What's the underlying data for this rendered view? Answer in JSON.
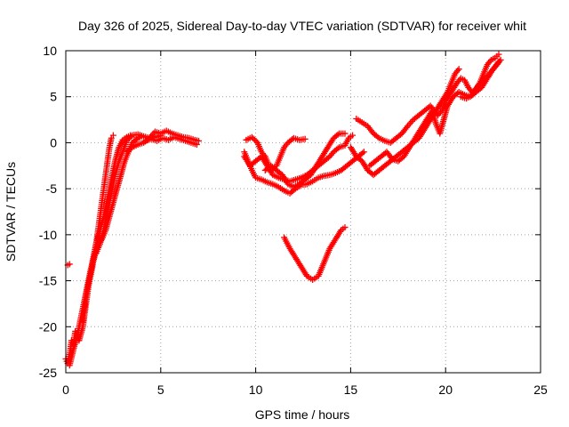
{
  "chart_data": {
    "type": "scatter",
    "title": "Day 326 of 2025, Sidereal Day-to-day VTEC variation (SDTVAR) for receiver whit",
    "xlabel": "GPS time / hours",
    "ylabel": "SDTVAR / TECUs",
    "xlim": [
      0,
      25
    ],
    "ylim": [
      -25,
      10
    ],
    "xticks": [
      0,
      5,
      10,
      15,
      20,
      25
    ],
    "yticks": [
      -25,
      -20,
      -15,
      -10,
      -5,
      0,
      5,
      10
    ],
    "grid": true,
    "marker": "+",
    "series": [
      {
        "name": "SDTVAR",
        "color": "#ff0000",
        "segments": [
          [
            [
              0.1,
              -13.3
            ],
            [
              0.2,
              -13.2
            ]
          ],
          [
            [
              0.0,
              -23.5
            ],
            [
              0.1,
              -24.0
            ],
            [
              0.2,
              -23.0
            ],
            [
              0.3,
              -21.5
            ],
            [
              0.4,
              -22.0
            ],
            [
              0.5,
              -20.5
            ],
            [
              0.7,
              -21.5
            ],
            [
              0.9,
              -20.0
            ],
            [
              1.0,
              -18.5
            ],
            [
              1.1,
              -17.0
            ],
            [
              1.2,
              -15.5
            ],
            [
              1.3,
              -14.5
            ],
            [
              1.4,
              -13.5
            ],
            [
              1.5,
              -12.0
            ],
            [
              1.6,
              -11.0
            ],
            [
              1.7,
              -9.5
            ],
            [
              1.8,
              -8.0
            ],
            [
              1.9,
              -6.5
            ],
            [
              2.0,
              -5.0
            ],
            [
              2.1,
              -3.5
            ],
            [
              2.2,
              -2.0
            ],
            [
              2.3,
              -0.5
            ],
            [
              2.4,
              0.5
            ],
            [
              2.5,
              0.8
            ]
          ],
          [
            [
              0.2,
              -24.2
            ],
            [
              0.4,
              -22.5
            ],
            [
              0.6,
              -21.0
            ],
            [
              0.8,
              -19.0
            ],
            [
              1.0,
              -17.0
            ],
            [
              1.2,
              -15.0
            ],
            [
              1.4,
              -13.0
            ],
            [
              1.6,
              -11.0
            ],
            [
              1.8,
              -9.5
            ],
            [
              2.0,
              -8.0
            ],
            [
              2.2,
              -6.0
            ],
            [
              2.4,
              -4.0
            ],
            [
              2.6,
              -2.0
            ],
            [
              2.8,
              -0.5
            ],
            [
              3.0,
              0.3
            ],
            [
              3.2,
              0.6
            ],
            [
              3.4,
              0.8
            ]
          ],
          [
            [
              0.9,
              -19.5
            ],
            [
              1.1,
              -16.0
            ],
            [
              1.3,
              -14.0
            ],
            [
              1.5,
              -12.5
            ],
            [
              1.7,
              -11.0
            ],
            [
              1.9,
              -10.5
            ],
            [
              2.1,
              -9.5
            ],
            [
              2.3,
              -8.0
            ],
            [
              2.5,
              -6.5
            ],
            [
              2.7,
              -5.0
            ],
            [
              2.9,
              -3.5
            ],
            [
              3.1,
              -2.0
            ],
            [
              3.3,
              -1.0
            ],
            [
              3.5,
              0.0
            ],
            [
              3.8,
              0.5
            ],
            [
              4.0,
              0.7
            ]
          ],
          [
            [
              1.6,
              -12.0
            ],
            [
              1.8,
              -11.0
            ],
            [
              2.0,
              -9.5
            ],
            [
              2.2,
              -7.5
            ],
            [
              2.4,
              -5.5
            ],
            [
              2.6,
              -3.5
            ],
            [
              2.8,
              -2.0
            ],
            [
              3.0,
              -1.0
            ],
            [
              3.2,
              0.2
            ],
            [
              3.5,
              0.8
            ],
            [
              3.8,
              0.9
            ],
            [
              4.1,
              0.7
            ],
            [
              4.4,
              0.5
            ],
            [
              4.7,
              0.6
            ],
            [
              5.0,
              0.8
            ]
          ],
          [
            [
              3.2,
              -1.0
            ],
            [
              3.5,
              -0.5
            ],
            [
              3.8,
              -0.2
            ],
            [
              4.1,
              0.0
            ],
            [
              4.4,
              0.5
            ],
            [
              4.7,
              1.2
            ],
            [
              5.0,
              1.0
            ],
            [
              5.3,
              1.3
            ],
            [
              5.6,
              1.0
            ],
            [
              5.9,
              0.8
            ],
            [
              6.2,
              0.6
            ],
            [
              6.5,
              0.5
            ],
            [
              6.8,
              0.3
            ],
            [
              7.0,
              0.2
            ]
          ],
          [
            [
              4.2,
              0.2
            ],
            [
              4.5,
              0.4
            ],
            [
              4.8,
              0.2
            ],
            [
              5.1,
              0.5
            ],
            [
              5.4,
              0.3
            ],
            [
              5.7,
              0.6
            ],
            [
              6.0,
              0.4
            ],
            [
              6.3,
              0.2
            ],
            [
              6.6,
              0.0
            ],
            [
              6.9,
              -0.2
            ]
          ],
          [
            [
              9.4,
              -1.0
            ],
            [
              9.6,
              -2.0
            ],
            [
              9.8,
              -3.0
            ],
            [
              10.0,
              -3.8
            ],
            [
              10.3,
              -4.0
            ],
            [
              10.6,
              -4.3
            ],
            [
              10.9,
              -4.5
            ],
            [
              11.2,
              -4.8
            ],
            [
              11.5,
              -5.2
            ],
            [
              11.8,
              -5.5
            ],
            [
              12.1,
              -5.0
            ],
            [
              12.4,
              -4.6
            ],
            [
              12.7,
              -4.5
            ],
            [
              13.0,
              -4.2
            ],
            [
              13.3,
              -3.8
            ],
            [
              13.6,
              -3.6
            ],
            [
              13.9,
              -3.5
            ],
            [
              14.2,
              -3.3
            ],
            [
              14.5,
              -3.0
            ],
            [
              14.8,
              -2.5
            ],
            [
              15.1,
              -2.0
            ],
            [
              15.4,
              -1.5
            ],
            [
              15.7,
              -1.0
            ]
          ],
          [
            [
              9.5,
              0.3
            ],
            [
              9.8,
              0.6
            ],
            [
              10.1,
              0.0
            ],
            [
              10.3,
              -1.0
            ],
            [
              10.5,
              -1.5
            ],
            [
              10.7,
              -2.5
            ],
            [
              10.9,
              -2.8
            ],
            [
              11.1,
              -2.5
            ],
            [
              11.3,
              -1.5
            ],
            [
              11.5,
              -0.5
            ],
            [
              11.7,
              0.0
            ],
            [
              12.0,
              0.5
            ],
            [
              12.3,
              0.3
            ],
            [
              12.6,
              0.4
            ]
          ],
          [
            [
              9.4,
              -1.5
            ],
            [
              9.7,
              -2.5
            ],
            [
              10.0,
              -2.0
            ],
            [
              10.3,
              -1.5
            ],
            [
              10.6,
              -2.5
            ],
            [
              10.9,
              -3.5
            ],
            [
              11.2,
              -3.8
            ],
            [
              11.5,
              -4.0
            ],
            [
              11.8,
              -4.2
            ],
            [
              12.1,
              -4.0
            ],
            [
              12.4,
              -3.8
            ],
            [
              12.7,
              -3.5
            ],
            [
              13.0,
              -3.0
            ],
            [
              13.3,
              -2.5
            ],
            [
              13.6,
              -2.0
            ],
            [
              13.9,
              -1.5
            ],
            [
              14.1,
              -1.0
            ],
            [
              14.4,
              -0.5
            ],
            [
              14.7,
              -0.3
            ],
            [
              14.9,
              0.5
            ],
            [
              15.1,
              0.8
            ]
          ],
          [
            [
              10.5,
              -3.0
            ],
            [
              10.8,
              -2.5
            ],
            [
              11.1,
              -3.0
            ],
            [
              11.4,
              -3.5
            ],
            [
              11.7,
              -4.5
            ],
            [
              12.0,
              -4.8
            ],
            [
              12.3,
              -4.5
            ],
            [
              12.6,
              -4.0
            ],
            [
              12.9,
              -3.5
            ],
            [
              13.2,
              -2.5
            ],
            [
              13.5,
              -1.5
            ],
            [
              13.8,
              -0.5
            ],
            [
              14.1,
              0.5
            ],
            [
              14.4,
              1.0
            ],
            [
              14.7,
              1.0
            ]
          ],
          [
            [
              11.5,
              -10.3
            ],
            [
              11.8,
              -11.5
            ],
            [
              12.1,
              -12.5
            ],
            [
              12.4,
              -13.5
            ],
            [
              12.7,
              -14.5
            ],
            [
              13.0,
              -14.9
            ],
            [
              13.3,
              -14.5
            ],
            [
              13.6,
              -13.0
            ],
            [
              13.9,
              -11.5
            ],
            [
              14.2,
              -10.5
            ],
            [
              14.5,
              -9.5
            ],
            [
              14.7,
              -9.2
            ]
          ],
          [
            [
              15.0,
              -0.5
            ],
            [
              15.3,
              -1.5
            ],
            [
              15.6,
              -2.0
            ],
            [
              15.9,
              -3.0
            ],
            [
              16.2,
              -3.5
            ],
            [
              16.5,
              -3.0
            ],
            [
              16.8,
              -2.5
            ],
            [
              17.1,
              -2.0
            ],
            [
              17.4,
              -1.5
            ],
            [
              17.7,
              -1.0
            ],
            [
              18.0,
              -0.5
            ],
            [
              18.3,
              0.0
            ],
            [
              18.6,
              0.5
            ],
            [
              18.9,
              1.5
            ],
            [
              19.2,
              2.5
            ],
            [
              19.5,
              3.5
            ],
            [
              19.8,
              4.5
            ],
            [
              20.1,
              5.5
            ],
            [
              20.3,
              6.5
            ],
            [
              20.5,
              7.5
            ],
            [
              20.7,
              8.0
            ]
          ],
          [
            [
              15.3,
              2.6
            ],
            [
              15.6,
              2.2
            ],
            [
              15.9,
              1.8
            ],
            [
              16.2,
              1.0
            ],
            [
              16.5,
              0.5
            ],
            [
              16.8,
              0.2
            ],
            [
              17.1,
              0.0
            ],
            [
              17.4,
              0.5
            ],
            [
              17.7,
              1.0
            ],
            [
              18.0,
              1.8
            ],
            [
              18.3,
              2.5
            ],
            [
              18.6,
              3.0
            ],
            [
              18.9,
              3.5
            ],
            [
              19.2,
              4.0
            ],
            [
              19.4,
              3.5
            ],
            [
              19.6,
              3.0
            ],
            [
              19.8,
              3.5
            ],
            [
              20.0,
              4.5
            ],
            [
              20.3,
              5.5
            ],
            [
              20.6,
              6.5
            ],
            [
              20.8,
              7.0
            ],
            [
              21.0,
              6.8
            ],
            [
              21.2,
              6.0
            ],
            [
              21.4,
              5.5
            ],
            [
              21.6,
              5.8
            ],
            [
              21.8,
              6.5
            ],
            [
              22.0,
              7.5
            ],
            [
              22.2,
              8.5
            ],
            [
              22.4,
              9.0
            ],
            [
              22.6,
              9.2
            ],
            [
              22.8,
              9.6
            ]
          ],
          [
            [
              16.0,
              -2.5
            ],
            [
              16.3,
              -2.0
            ],
            [
              16.6,
              -1.5
            ],
            [
              16.9,
              -1.0
            ],
            [
              17.2,
              -1.8
            ],
            [
              17.5,
              -2.0
            ],
            [
              17.8,
              -1.5
            ],
            [
              18.1,
              -0.5
            ],
            [
              18.4,
              0.5
            ],
            [
              18.7,
              1.5
            ],
            [
              19.0,
              2.5
            ],
            [
              19.3,
              3.5
            ],
            [
              19.5,
              2.0
            ],
            [
              19.7,
              1.0
            ],
            [
              19.9,
              2.5
            ],
            [
              20.1,
              4.0
            ],
            [
              20.4,
              5.0
            ],
            [
              20.7,
              5.5
            ],
            [
              21.0,
              5.2
            ],
            [
              21.3,
              5.0
            ],
            [
              21.6,
              5.5
            ],
            [
              21.9,
              6.0
            ],
            [
              22.2,
              7.0
            ],
            [
              22.5,
              8.0
            ],
            [
              22.8,
              8.8
            ]
          ],
          [
            [
              20.8,
              5.0
            ],
            [
              21.1,
              4.8
            ],
            [
              21.4,
              5.2
            ],
            [
              21.7,
              6.2
            ],
            [
              22.0,
              6.8
            ],
            [
              22.3,
              7.5
            ],
            [
              22.6,
              8.2
            ],
            [
              22.9,
              9.0
            ]
          ]
        ]
      }
    ]
  }
}
